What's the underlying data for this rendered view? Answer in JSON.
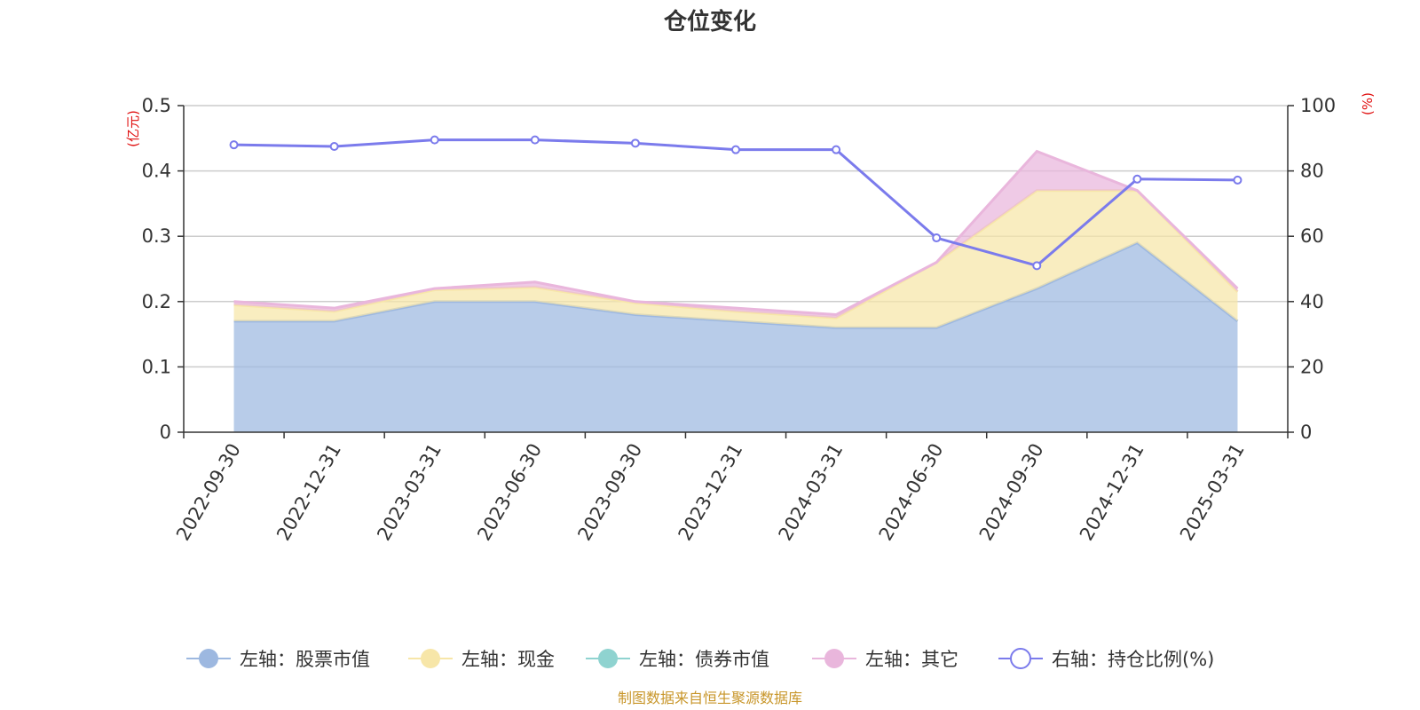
{
  "chart_data": {
    "type": "area",
    "title": "仓位变化",
    "categories": [
      "2022-09-30",
      "2022-12-31",
      "2023-03-31",
      "2023-06-30",
      "2023-09-30",
      "2023-12-31",
      "2024-03-31",
      "2024-06-30",
      "2024-09-30",
      "2024-12-31",
      "2025-03-31"
    ],
    "left_axis": {
      "unit": "(亿元)",
      "ylim": [
        0,
        0.5
      ],
      "ticks": [
        "0",
        "0.1",
        "0.2",
        "0.3",
        "0.4",
        "0.5"
      ],
      "tick_values": [
        0,
        0.1,
        0.2,
        0.3,
        0.4,
        0.5
      ]
    },
    "right_axis": {
      "unit": "(%)",
      "ylim": [
        0,
        100
      ],
      "ticks": [
        "0",
        "20",
        "40",
        "60",
        "80",
        "100"
      ],
      "tick_values": [
        0,
        20,
        40,
        60,
        80,
        100
      ]
    },
    "stacked": true,
    "grid": true,
    "legend_position": "bottom",
    "series": [
      {
        "name": "左轴：股票市值",
        "axis": "left",
        "kind": "area",
        "color": "#9db8e0",
        "values": [
          0.17,
          0.17,
          0.2,
          0.2,
          0.18,
          0.17,
          0.16,
          0.16,
          0.22,
          0.29,
          0.17
        ]
      },
      {
        "name": "左轴：现金",
        "axis": "left",
        "kind": "area",
        "color": "#f7e6a8",
        "values": [
          0.025,
          0.015,
          0.018,
          0.022,
          0.018,
          0.015,
          0.015,
          0.1,
          0.15,
          0.08,
          0.045
        ]
      },
      {
        "name": "左轴：债券市值",
        "axis": "left",
        "kind": "area",
        "color": "#8fd3d0",
        "values": [
          0,
          0,
          0,
          0,
          0,
          0,
          0,
          0,
          0,
          0,
          0
        ]
      },
      {
        "name": "左轴：其它",
        "axis": "left",
        "kind": "area",
        "color": "#e9b6dc",
        "values": [
          0.005,
          0.005,
          0.002,
          0.008,
          0.002,
          0.005,
          0.005,
          0.0,
          0.06,
          0.0,
          0.005
        ]
      },
      {
        "name": "右轴：持仓比例(%)",
        "axis": "right",
        "kind": "line",
        "color": "#7b7bec",
        "values": [
          88,
          87.5,
          89.5,
          89.5,
          88.5,
          86.5,
          86.5,
          59.5,
          51,
          77.5,
          77.2
        ]
      }
    ],
    "source": "制图数据来自恒生聚源数据库",
    "colors": {
      "unit": "#e01010",
      "source": "#c8962a",
      "axis": "#333333",
      "grid": "#cccccc"
    }
  }
}
